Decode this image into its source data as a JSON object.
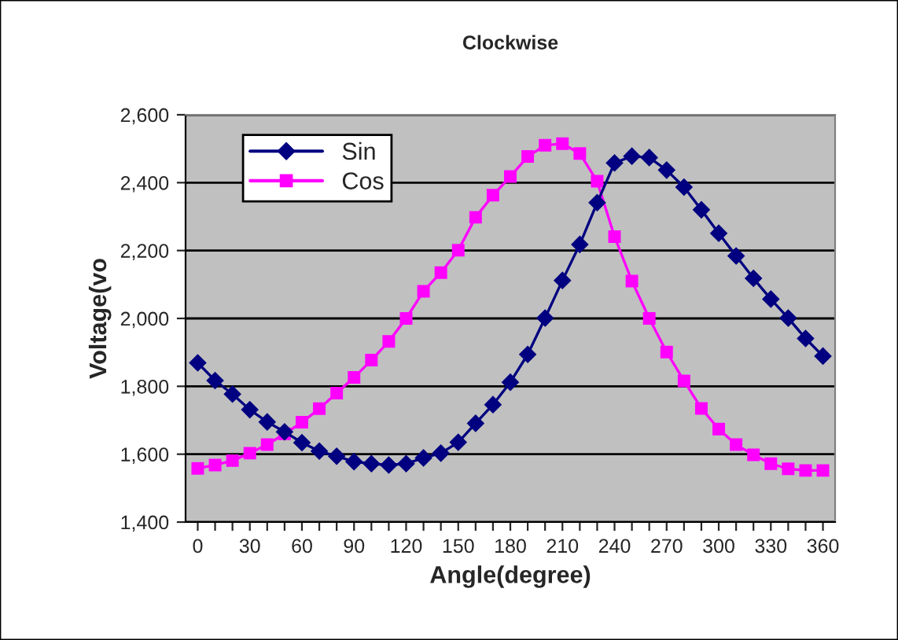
{
  "chart_data": {
    "type": "line",
    "title": "Clockwise",
    "xlabel": "Angle(degree)",
    "ylabel": "Voltage(vo",
    "categories": [
      "0",
      null,
      null,
      "30",
      null,
      null,
      "60",
      null,
      null,
      "90",
      null,
      null,
      "120",
      null,
      null,
      "150",
      null,
      null,
      "180",
      null,
      null,
      "210",
      null,
      null,
      "240",
      null,
      null,
      "270",
      null,
      null,
      "300",
      null,
      null,
      "330",
      null,
      null,
      "360"
    ],
    "series": [
      {
        "name": "Sin",
        "color": "#000080",
        "marker": "diamond",
        "values": [
          1869,
          1817,
          1777,
          1731,
          1695,
          1666,
          1634,
          1609,
          1594,
          1578,
          1572,
          1568,
          1572,
          1589,
          1603,
          1635,
          1691,
          1746,
          1812,
          1894,
          2001,
          2112,
          2218,
          2341,
          2458,
          2478,
          2474,
          2437,
          2387,
          2320,
          2251,
          2184,
          2118,
          2057,
          2001,
          1941,
          1889
        ]
      },
      {
        "name": "Cos",
        "color": "#ff00ff",
        "marker": "square",
        "values": [
          1558,
          1568,
          1581,
          1603,
          1628,
          1660,
          1694,
          1734,
          1780,
          1826,
          1877,
          1932,
          2000,
          2080,
          2135,
          2201,
          2298,
          2363,
          2418,
          2477,
          2510,
          2515,
          2486,
          2404,
          2241,
          2110,
          2000,
          1901,
          1816,
          1735,
          1674,
          1628,
          1598,
          1572,
          1557,
          1552,
          1552
        ]
      }
    ],
    "ylim": [
      1400,
      2600
    ],
    "yticks": [
      {
        "value": 1400,
        "label": "1,400"
      },
      {
        "value": 1600,
        "label": "1,600"
      },
      {
        "value": 1800,
        "label": "1,800"
      },
      {
        "value": 2000,
        "label": "2,000"
      },
      {
        "value": 2200,
        "label": "2,200"
      },
      {
        "value": 2400,
        "label": "2,400"
      },
      {
        "value": 2600,
        "label": "2,600"
      }
    ],
    "grid": "y",
    "legend": "top left",
    "line_style": "solid"
  }
}
